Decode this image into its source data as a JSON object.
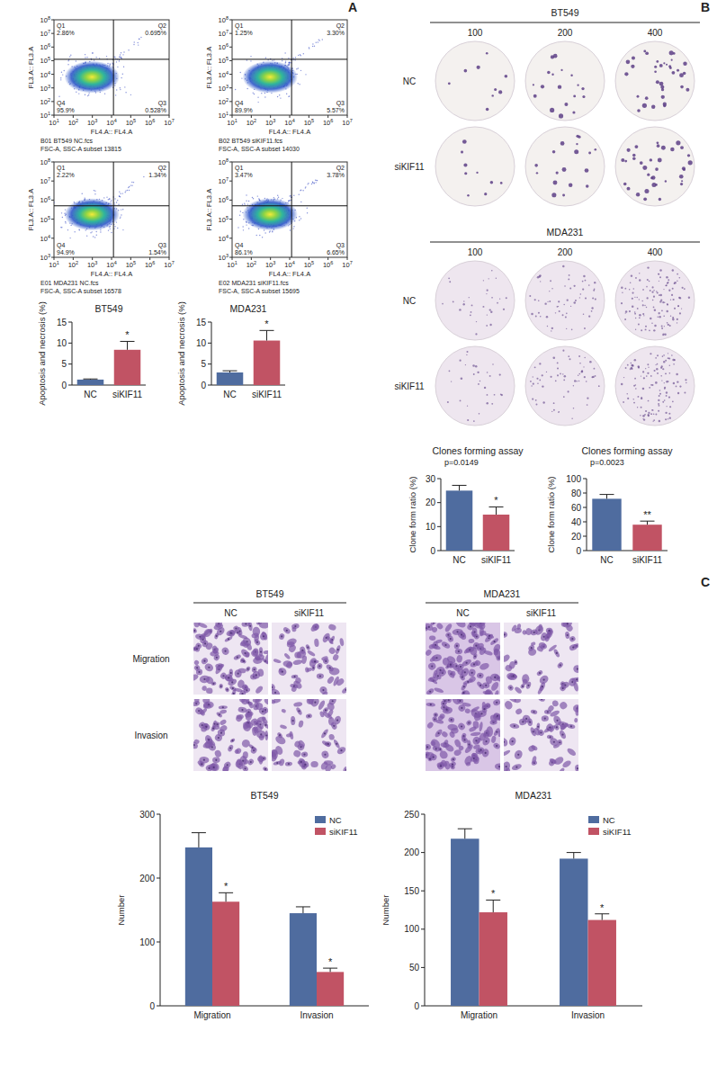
{
  "panel_labels": [
    "A",
    "B",
    "C"
  ],
  "flow_plots": [
    {
      "x_label": "FL4.A:: FL4.A",
      "y_label": "FL3.A:: FL3.A",
      "tick_base": "10",
      "xlim": [
        1,
        7
      ],
      "xticks": [
        1,
        2,
        3,
        4,
        5,
        6,
        7
      ],
      "ylim": [
        1,
        8
      ],
      "yticks": [
        1,
        2,
        3,
        4,
        5,
        6,
        7,
        8
      ],
      "gate": {
        "x": 4.1,
        "y": 5.1
      },
      "quadrants": [
        {
          "name": "Q1",
          "label": "2.86%"
        },
        {
          "name": "Q2",
          "label": "0.695%"
        },
        {
          "name": "Q3",
          "label": "0.528%"
        },
        {
          "name": "Q4",
          "label": "95.9%"
        }
      ],
      "caption": [
        "B01 BT549 NC.fcs",
        "FSC-A, SSC-A subset 13815"
      ]
    },
    {
      "x_label": "FL4.A:: FL4.A",
      "y_label": "FL3.A:: FL3.A",
      "tick_base": "10",
      "xlim": [
        1,
        7
      ],
      "xticks": [
        1,
        2,
        3,
        4,
        5,
        6,
        7
      ],
      "ylim": [
        1,
        8
      ],
      "yticks": [
        1,
        2,
        3,
        4,
        5,
        6,
        7,
        8
      ],
      "gate": {
        "x": 4.1,
        "y": 5.1
      },
      "quadrants": [
        {
          "name": "Q1",
          "label": "1.25%"
        },
        {
          "name": "Q2",
          "label": "3.30%"
        },
        {
          "name": "Q3",
          "label": "5.57%"
        },
        {
          "name": "Q4",
          "label": "89.9%"
        }
      ],
      "caption": [
        "B02 BT549 siKIF11.fcs",
        "FSC-A, SSC-A subset 14030"
      ]
    },
    {
      "x_label": "FL4.A:: FL4.A",
      "y_label": "FL3.A:: FL3.A",
      "tick_base": "10",
      "xlim": [
        1,
        7
      ],
      "xticks": [
        1,
        2,
        3,
        4,
        5,
        6,
        7
      ],
      "ylim": [
        3,
        8
      ],
      "yticks": [
        3,
        4,
        5,
        6,
        7,
        8
      ],
      "gate": {
        "x": 4.1,
        "y": 5.7
      },
      "quadrants": [
        {
          "name": "Q1",
          "label": "2.22%"
        },
        {
          "name": "Q2",
          "label": "1.34%"
        },
        {
          "name": "Q3",
          "label": "1.54%"
        },
        {
          "name": "Q4",
          "label": "94.9%"
        }
      ],
      "caption": [
        "E01 MDA231 NC.fcs",
        "FSC-A, SSC-A subset 16578"
      ]
    },
    {
      "x_label": "FL4.A:: FL4.A",
      "y_label": "FL3.A:: FL3.A",
      "tick_base": "10",
      "xlim": [
        1,
        7
      ],
      "xticks": [
        1,
        2,
        3,
        4,
        5,
        6,
        7
      ],
      "ylim": [
        3,
        8
      ],
      "yticks": [
        3,
        4,
        5,
        6,
        7,
        8
      ],
      "gate": {
        "x": 4.1,
        "y": 5.7
      },
      "quadrants": [
        {
          "name": "Q1",
          "label": "3.47%"
        },
        {
          "name": "Q2",
          "label": "3.78%"
        },
        {
          "name": "Q3",
          "label": "6.65%"
        },
        {
          "name": "Q4",
          "label": "86.1%"
        }
      ],
      "caption": [
        "E02 MDA231 siKIF11.fcs",
        "FSC-A, SSC-A subset 15695"
      ]
    }
  ],
  "plates": [
    {
      "title": "BT549",
      "columns": [
        100,
        200,
        400
      ],
      "rows": [
        "NC",
        "siKIF11"
      ]
    },
    {
      "title": "MDA231",
      "columns": [
        100,
        200,
        400
      ],
      "rows": [
        "NC",
        "siKIF11"
      ]
    }
  ],
  "micrographs": {
    "groups": [
      {
        "title": "BT549",
        "columns": [
          "NC",
          "siKIF11"
        ]
      },
      {
        "title": "MDA231",
        "columns": [
          "NC",
          "siKIF11"
        ]
      }
    ],
    "rows": [
      "Migration",
      "Invasion"
    ]
  },
  "chart_data": [
    {
      "type": "bar",
      "title": "BT549",
      "y_label": "Apoptosis and necrosis (%)",
      "categories": [
        "NC",
        "siKIF11"
      ],
      "values": [
        1.3,
        8.4
      ],
      "errors": [
        0.15,
        2.0
      ],
      "colors": [
        "#4f6c9f",
        "#c15364"
      ],
      "significance": [
        null,
        "*"
      ],
      "ylim": [
        0,
        15
      ],
      "yticks": [
        0,
        5,
        10,
        15
      ]
    },
    {
      "type": "bar",
      "title": "MDA231",
      "y_label": "Apoptosis and necrosis (%)",
      "categories": [
        "NC",
        "siKIF11"
      ],
      "values": [
        3.0,
        10.6
      ],
      "errors": [
        0.4,
        2.4
      ],
      "colors": [
        "#4f6c9f",
        "#c15364"
      ],
      "significance": [
        null,
        "*"
      ],
      "ylim": [
        0,
        15
      ],
      "yticks": [
        0,
        5,
        10,
        15
      ]
    },
    {
      "type": "bar",
      "title": "Clones forming assay",
      "subtitle": "p=0.0149",
      "y_label": "Clone form ratio (%)",
      "categories": [
        "NC",
        "siKIF11"
      ],
      "values": [
        25,
        15
      ],
      "errors": [
        2.2,
        3.2
      ],
      "colors": [
        "#4f6c9f",
        "#c15364"
      ],
      "significance": [
        null,
        "*"
      ],
      "ylim": [
        0,
        30
      ],
      "yticks": [
        0,
        10,
        20,
        30
      ]
    },
    {
      "type": "bar",
      "title": "Clones forming assay",
      "subtitle": "p=0.0023",
      "y_label": "Clone form ratio (%)",
      "categories": [
        "NC",
        "siKIF11"
      ],
      "values": [
        72,
        36
      ],
      "errors": [
        6,
        5
      ],
      "colors": [
        "#4f6c9f",
        "#c15364"
      ],
      "significance": [
        null,
        "**"
      ],
      "ylim": [
        0,
        100
      ],
      "yticks": [
        0,
        20,
        40,
        60,
        80,
        100
      ]
    },
    {
      "type": "bar",
      "title": "BT549",
      "y_label": "Number",
      "legend": "upper right",
      "categories": [
        "Migration",
        "Invasion"
      ],
      "series": [
        {
          "name": "NC",
          "color": "#4f6c9f",
          "values": [
            248,
            145
          ],
          "errors": [
            23,
            10
          ]
        },
        {
          "name": "siKIF11",
          "color": "#c15364",
          "values": [
            163,
            53
          ],
          "errors": [
            14,
            6
          ],
          "significance": [
            "*",
            "*"
          ]
        }
      ],
      "ylim": [
        0,
        300
      ],
      "yticks": [
        0,
        100,
        200,
        300
      ]
    },
    {
      "type": "bar",
      "title": "MDA231",
      "y_label": "Number",
      "legend": "upper right",
      "categories": [
        "Migration",
        "Invasion"
      ],
      "series": [
        {
          "name": "NC",
          "color": "#4f6c9f",
          "values": [
            218,
            192
          ],
          "errors": [
            13,
            8
          ]
        },
        {
          "name": "siKIF11",
          "color": "#c15364",
          "values": [
            122,
            112
          ],
          "errors": [
            16,
            8
          ],
          "significance": [
            "*",
            "*"
          ]
        }
      ],
      "ylim": [
        0,
        250
      ],
      "yticks": [
        0,
        50,
        100,
        150,
        200,
        250
      ]
    }
  ]
}
